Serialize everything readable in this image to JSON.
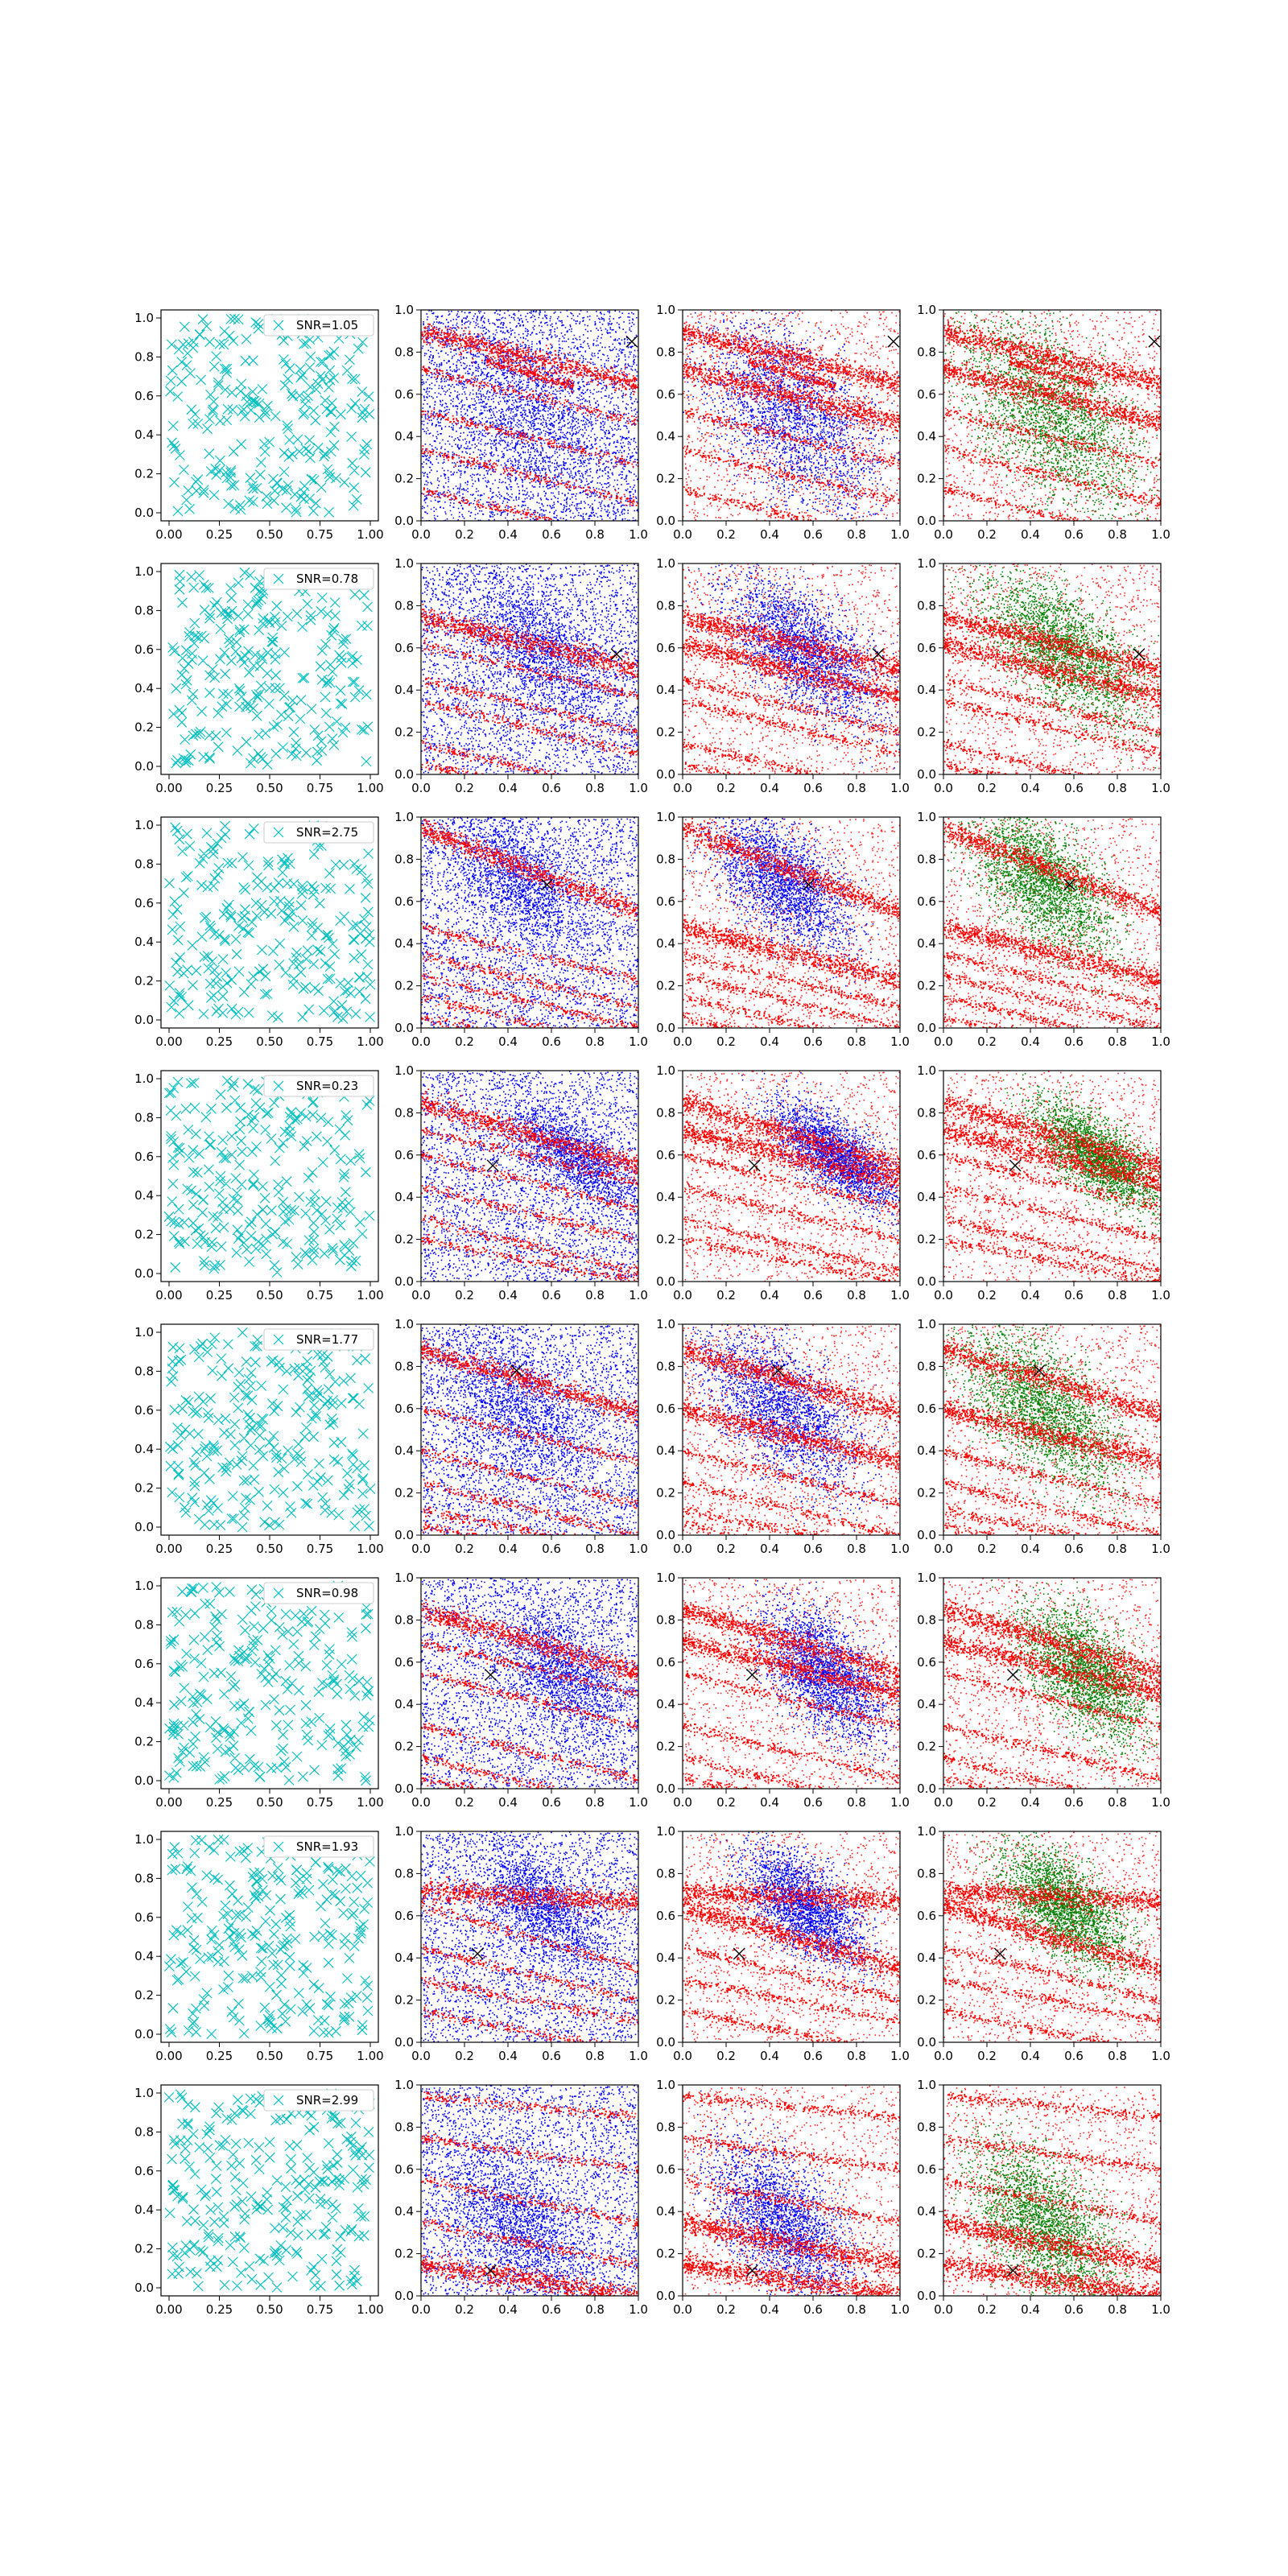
{
  "figure": {
    "title": "",
    "rows": 8,
    "cols": 4
  },
  "chart_data": {
    "type": "scatter",
    "description_of_layout": "8x4 grid of scatter subplots",
    "column_series_colors": [
      [
        "#00bfbf"
      ],
      [
        "#ff0000",
        "#0000ff"
      ],
      [
        "#ff0000",
        "#0000ff"
      ],
      [
        "#ff0000",
        "#008000"
      ]
    ],
    "x_ticks_col0": [
      "0.00",
      "0.25",
      "0.50",
      "0.75",
      "1.00"
    ],
    "x_ticks_other": [
      "0.0",
      "0.2",
      "0.4",
      "0.6",
      "0.8",
      "1.0"
    ],
    "y_ticks": [
      "0.0",
      "0.2",
      "0.4",
      "0.6",
      "0.8",
      "1.0"
    ],
    "xlim": [
      0,
      1
    ],
    "ylim": [
      0,
      1
    ],
    "rows": [
      {
        "snr": "SNR=1.05",
        "marker": [
          0.97,
          0.85
        ],
        "bands": [
          [
            0.9,
            -0.25
          ],
          [
            0.72,
            -0.25
          ],
          [
            0.52,
            -0.25
          ],
          [
            0.34,
            -0.25
          ],
          [
            0.15,
            -0.25
          ],
          [
            0.85,
            -0.3,
            0.3,
            0.7
          ]
        ],
        "blob": [
          0.5,
          0.5,
          0.45,
          0.45
        ]
      },
      {
        "snr": "SNR=0.78",
        "marker": [
          0.9,
          0.57
        ],
        "bands": [
          [
            0.75,
            -0.25
          ],
          [
            0.62,
            -0.25
          ],
          [
            0.45,
            -0.25
          ],
          [
            0.35,
            -0.25
          ],
          [
            0.15,
            -0.25
          ],
          [
            0.05,
            -0.2
          ]
        ],
        "blob": [
          0.55,
          0.6,
          0.4,
          0.3
        ]
      },
      {
        "snr": "SNR=2.75",
        "marker": [
          0.58,
          0.68
        ],
        "bands": [
          [
            0.95,
            -0.4
          ],
          [
            0.48,
            -0.25
          ],
          [
            0.35,
            -0.25
          ],
          [
            0.25,
            -0.25
          ],
          [
            0.15,
            -0.25
          ],
          [
            0.05,
            -0.2
          ]
        ],
        "blob": [
          0.45,
          0.7,
          0.35,
          0.3
        ]
      },
      {
        "snr": "SNR=0.23",
        "marker": [
          0.33,
          0.55
        ],
        "bands": [
          [
            0.85,
            -0.3
          ],
          [
            0.72,
            -0.25
          ],
          [
            0.6,
            -0.25
          ],
          [
            0.45,
            -0.25
          ],
          [
            0.3,
            -0.25
          ],
          [
            0.2,
            -0.2
          ]
        ],
        "blob": [
          0.7,
          0.6,
          0.3,
          0.2
        ]
      },
      {
        "snr": "SNR=1.77",
        "marker": [
          0.44,
          0.78
        ],
        "bands": [
          [
            0.88,
            -0.3
          ],
          [
            0.6,
            -0.25
          ],
          [
            0.4,
            -0.25
          ],
          [
            0.25,
            -0.25
          ],
          [
            0.12,
            -0.2
          ],
          [
            0.05,
            -0.2
          ]
        ],
        "blob": [
          0.45,
          0.6,
          0.4,
          0.35
        ]
      },
      {
        "snr": "SNR=0.98",
        "marker": [
          0.32,
          0.54
        ],
        "bands": [
          [
            0.85,
            -0.3
          ],
          [
            0.7,
            -0.25
          ],
          [
            0.55,
            -0.25
          ],
          [
            0.3,
            -0.25
          ],
          [
            0.15,
            -0.25
          ],
          [
            0.05,
            -0.2
          ]
        ],
        "blob": [
          0.65,
          0.55,
          0.3,
          0.3
        ]
      },
      {
        "snr": "SNR=1.93",
        "marker": [
          0.26,
          0.42
        ],
        "bands": [
          [
            0.72,
            -0.05
          ],
          [
            0.65,
            -0.3
          ],
          [
            0.45,
            -0.25
          ],
          [
            0.3,
            -0.2
          ],
          [
            0.15,
            -0.2
          ]
        ],
        "blob": [
          0.55,
          0.65,
          0.3,
          0.25
        ]
      },
      {
        "snr": "SNR=2.99",
        "marker": [
          0.32,
          0.12
        ],
        "bands": [
          [
            0.15,
            -0.15
          ],
          [
            0.35,
            -0.2
          ],
          [
            0.55,
            -0.2
          ],
          [
            0.75,
            -0.15
          ],
          [
            0.95,
            -0.1
          ]
        ],
        "blob": [
          0.45,
          0.35,
          0.35,
          0.35
        ]
      }
    ]
  }
}
